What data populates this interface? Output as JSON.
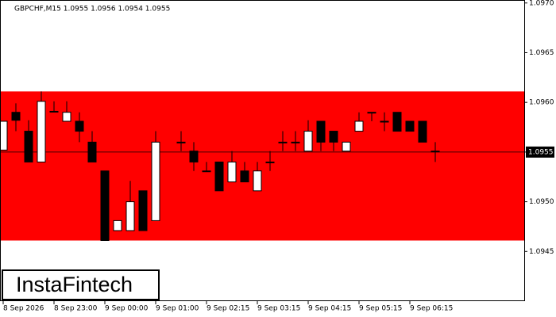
{
  "chart_data": {
    "type": "candlestick",
    "title": "GBPCHF,M15  1.0955 1.0956 1.0954 1.0955",
    "logo": "InstaFintech",
    "categories": [
      "8 Sep 2026",
      null,
      null,
      null,
      "8 Sep 23:00",
      null,
      null,
      null,
      "9 Sep 00:00",
      null,
      null,
      null,
      "9 Sep 01:00",
      null,
      null,
      null,
      "9 Sep 02:15",
      null,
      null,
      null,
      "9 Sep 03:15",
      null,
      null,
      null,
      "9 Sep 04:15",
      null,
      null,
      null,
      "9 Sep 05:15",
      null,
      null,
      null,
      "9 Sep 06:15",
      null,
      null
    ],
    "open": [
      1.09552,
      1.0959,
      1.09571,
      1.0954,
      1.09591,
      1.09581,
      1.09581,
      1.0956,
      1.09531,
      1.09471,
      1.09471,
      1.09511,
      1.09481,
      null,
      1.0956,
      1.09551,
      1.09531,
      1.0954,
      1.0952,
      1.09531,
      1.09511,
      1.0954,
      1.0956,
      1.0956,
      1.09551,
      1.09581,
      1.09571,
      1.09551,
      1.09571,
      1.0959,
      1.09581,
      1.0959,
      1.09581,
      1.09581,
      1.09551
    ],
    "high": [
      1.09581,
      1.09599,
      1.09582,
      1.09611,
      1.09601,
      1.09601,
      1.0959,
      1.09571,
      1.09531,
      1.09481,
      1.09521,
      1.09511,
      1.09571,
      null,
      1.09571,
      1.0956,
      1.0954,
      1.0954,
      1.09551,
      1.0954,
      1.0954,
      1.09551,
      1.09571,
      1.09571,
      1.09582,
      1.09581,
      1.09571,
      1.0956,
      1.0959,
      1.0959,
      1.0959,
      1.0959,
      1.09581,
      1.09581,
      1.0956
    ],
    "low": [
      1.09552,
      1.09571,
      1.0954,
      1.0954,
      1.0959,
      1.09581,
      1.0956,
      1.0954,
      1.09461,
      1.09471,
      1.09471,
      1.09471,
      1.09481,
      null,
      1.09551,
      1.09531,
      1.09531,
      1.09511,
      1.0952,
      1.0952,
      1.09511,
      1.09531,
      1.09551,
      1.09551,
      1.09551,
      1.09551,
      1.09551,
      1.09551,
      1.09571,
      1.09581,
      1.09571,
      1.09571,
      1.09571,
      1.0956,
      1.0954
    ],
    "close": [
      1.09581,
      1.09582,
      1.0954,
      1.09601,
      1.09591,
      1.0959,
      1.09571,
      1.0954,
      1.09461,
      1.09481,
      1.095,
      1.09471,
      1.0956,
      null,
      1.0956,
      1.0954,
      1.09531,
      1.09511,
      1.0954,
      1.0952,
      1.09531,
      1.0954,
      1.0956,
      1.0956,
      1.09571,
      1.0956,
      1.0956,
      1.0956,
      1.09581,
      1.0959,
      1.09581,
      1.09571,
      1.09571,
      1.0956,
      1.09551
    ],
    "zone": [
      1.09461,
      1.09611
    ],
    "zone_color": "#ff0000",
    "current_price": 1.0955,
    "ylim": [
      1.094,
      1.09703
    ],
    "yticks": [
      {
        "value": 1.097,
        "label": "1.0970"
      },
      1.0965,
      {
        "value": 1.096,
        "label": "1.0960"
      },
      1.0955,
      {
        "value": 1.095,
        "label": "1.0950"
      },
      1.0945
    ]
  }
}
